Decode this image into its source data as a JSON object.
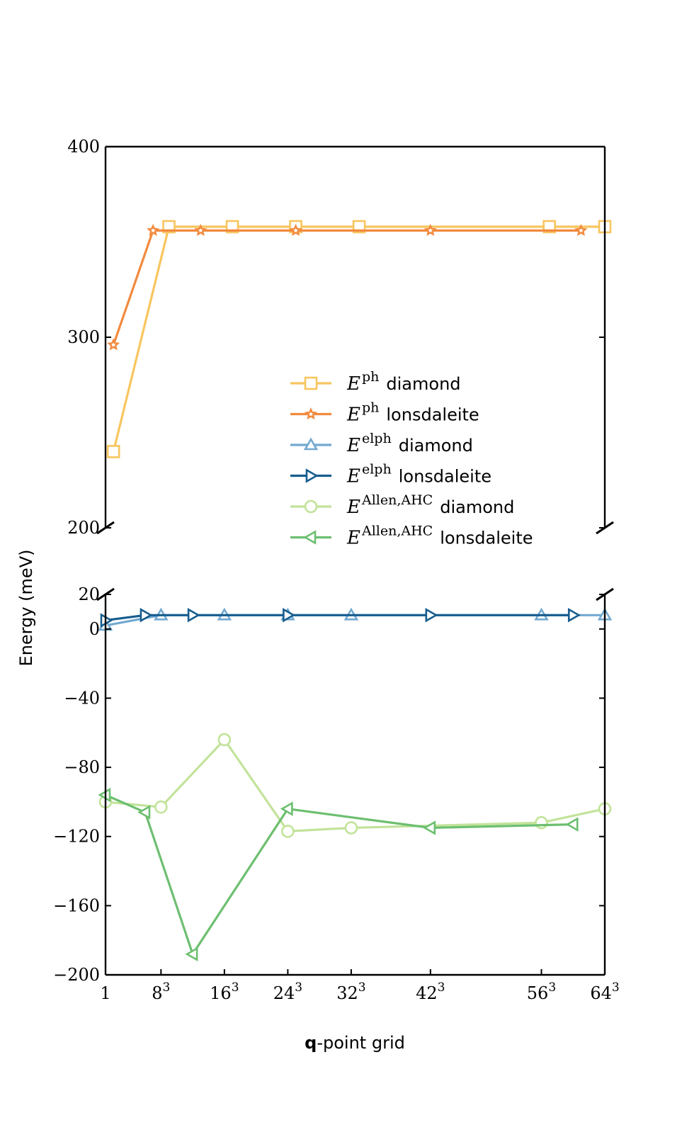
{
  "chart_data": {
    "type": "line",
    "ylabel": "Energy (meV)",
    "xlabel_bold": "q",
    "xlabel_rest": "-point grid",
    "x_tick_labels": [
      {
        "x": 1,
        "base": "1",
        "sup": ""
      },
      {
        "x": 8,
        "base": "8",
        "sup": "3"
      },
      {
        "x": 16,
        "base": "16",
        "sup": "3"
      },
      {
        "x": 24,
        "base": "24",
        "sup": "3"
      },
      {
        "x": 32,
        "base": "32",
        "sup": "3"
      },
      {
        "x": 42,
        "base": "42",
        "sup": "3"
      },
      {
        "x": 56,
        "base": "56",
        "sup": "3"
      },
      {
        "x": 64,
        "base": "64",
        "sup": "3"
      }
    ],
    "xlim": [
      1,
      64
    ],
    "upper_panel": {
      "ylim": [
        200,
        400
      ],
      "yticks": [
        200,
        300,
        400
      ]
    },
    "lower_panel": {
      "ylim": [
        -200,
        20
      ],
      "yticks": [
        20,
        0,
        -40,
        -80,
        -120,
        -160,
        -200
      ]
    },
    "series": [
      {
        "name": "diamond",
        "symbol": "ph",
        "panel": "upper",
        "color": "#f8c55e",
        "marker": "square",
        "x": [
          2,
          9,
          17,
          25,
          33,
          57,
          64
        ],
        "values": [
          240,
          358,
          358,
          358,
          358,
          358,
          358
        ]
      },
      {
        "name": "lonsdaleite",
        "symbol": "ph",
        "panel": "upper",
        "color": "#f28a3e",
        "marker": "star",
        "x": [
          2,
          7,
          13,
          25,
          42,
          61
        ],
        "values": [
          296,
          356,
          356,
          356,
          356,
          356
        ]
      },
      {
        "name": "diamond",
        "symbol": "elph",
        "panel": "lower",
        "color": "#73a9d0",
        "marker": "triangle-up",
        "x": [
          1,
          8,
          16,
          24,
          32,
          56,
          64
        ],
        "values": [
          2,
          8,
          8,
          8,
          8,
          8,
          8
        ]
      },
      {
        "name": "lonsdaleite",
        "symbol": "elph",
        "panel": "lower",
        "color": "#175d8e",
        "marker": "triangle-right",
        "x": [
          1,
          6,
          12,
          24,
          42,
          60
        ],
        "values": [
          5,
          8,
          8,
          8,
          8,
          8
        ]
      },
      {
        "name": "diamond",
        "symbol": "Allen,AHC",
        "panel": "lower",
        "color": "#c2e39a",
        "marker": "circle",
        "x": [
          1,
          8,
          16,
          24,
          32,
          56,
          64
        ],
        "values": [
          -100,
          -103,
          -64,
          -117,
          -115,
          -112,
          -104
        ]
      },
      {
        "name": "lonsdaleite",
        "symbol": "Allen,AHC",
        "panel": "lower",
        "color": "#6dbf70",
        "marker": "triangle-left",
        "x": [
          1,
          6,
          12,
          24,
          42,
          60
        ],
        "values": [
          -96,
          -106,
          -188,
          -104,
          -115,
          -113
        ]
      }
    ],
    "legend": {
      "placement": "center-right of upper panel",
      "entries": [
        {
          "symbol": "ph",
          "label": "diamond"
        },
        {
          "symbol": "ph",
          "label": "lonsdaleite"
        },
        {
          "symbol": "elph",
          "label": "diamond"
        },
        {
          "symbol": "elph",
          "label": "lonsdaleite"
        },
        {
          "symbol": "Allen,AHC",
          "label": "diamond"
        },
        {
          "symbol": "Allen,AHC",
          "label": "lonsdaleite"
        }
      ]
    },
    "broken_axis": true
  }
}
